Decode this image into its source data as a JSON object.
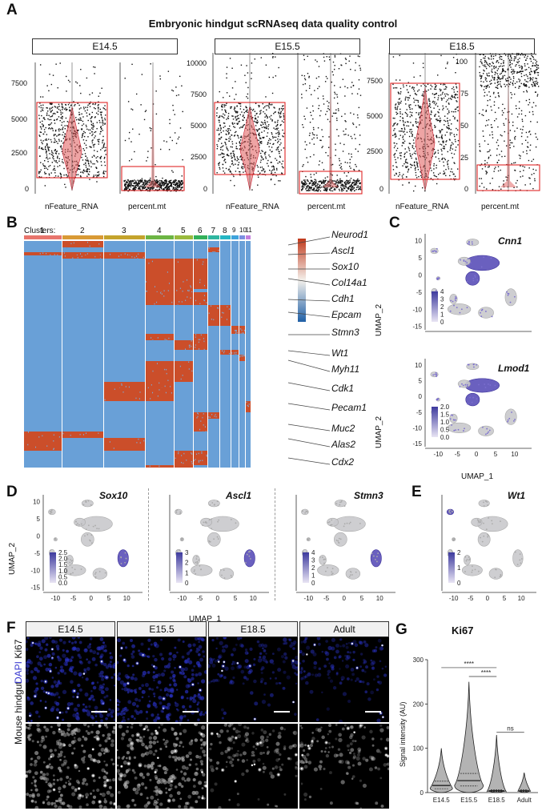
{
  "panels": {
    "A": "A",
    "B": "B",
    "C": "C",
    "D": "D",
    "E": "E",
    "F": "F",
    "G": "G"
  },
  "panelA": {
    "title": "Embryonic hindgut scRNAseq data quality control",
    "groups": [
      {
        "label": "E14.5",
        "feature_ticks": [
          "7500",
          "5000",
          "2500",
          "0"
        ],
        "mt_ticks": []
      },
      {
        "label": "E15.5",
        "feature_ticks": [
          "10000",
          "7500",
          "5000",
          "2500",
          "0"
        ],
        "mt_ticks": []
      },
      {
        "label": "E18.5",
        "feature_ticks": [
          "7500",
          "5000",
          "2500",
          "0"
        ],
        "mt_ticks": [
          "100",
          "75",
          "50",
          "25",
          "0"
        ]
      }
    ],
    "x_labels": {
      "feature": "nFeature_RNA",
      "mt": "percent.mt"
    }
  },
  "panelB": {
    "clusters_label": "Clusters:",
    "clusters": [
      "1",
      "2",
      "3",
      "4",
      "5",
      "6",
      "7",
      "8",
      "9",
      "10",
      "11"
    ],
    "cluster_colors": [
      "#e8756c",
      "#d99a35",
      "#c4a32c",
      "#6cb544",
      "#9aba3d",
      "#33b15a",
      "#2fb6a0",
      "#25b6c4",
      "#3fa3dc",
      "#7b8fe0",
      "#c37fde"
    ],
    "genes": [
      "Neurod1",
      "Ascl1",
      "Sox10",
      "Col14a1",
      "Cdh1",
      "Epcam",
      "Stmn3",
      "Wt1",
      "Myh11",
      "Cdk1",
      "Pecam1",
      "Muc2",
      "Alas2",
      "Cdx2"
    ]
  },
  "panelC": {
    "genes": [
      "Cnn1",
      "Lmod1"
    ],
    "legend1": [
      "4",
      "3",
      "2",
      "1",
      "0"
    ],
    "legend2": [
      "2.0",
      "1.5",
      "1.0",
      "0.5",
      "0.0"
    ],
    "y_ticks": [
      "10",
      "5",
      "0",
      "-5",
      "-10",
      "-15"
    ],
    "x_ticks": [
      "-10",
      "-5",
      "0",
      "5",
      "10"
    ],
    "xlabel": "UMAP_1",
    "ylabel": "UMAP_2"
  },
  "panelD": {
    "genes": [
      "Sox10",
      "Ascl1",
      "Stmn3"
    ],
    "legends": [
      [
        "2.5",
        "2.0",
        "1.5",
        "1.0",
        "0.5",
        "0.0"
      ],
      [
        "3",
        "2",
        "1",
        "0"
      ],
      [
        "4",
        "3",
        "2",
        "1",
        "0"
      ]
    ],
    "y_ticks": [
      "10",
      "5",
      "0",
      "-5",
      "-10",
      "-15"
    ],
    "x_ticks": [
      "-10",
      "-5",
      "0",
      "5",
      "10"
    ],
    "xlabel": "UMAP_1",
    "ylabel": "UMAP_2"
  },
  "panelE": {
    "gene": "Wt1",
    "legend": [
      "2",
      "1",
      "0"
    ],
    "x_ticks": [
      "-10",
      "-5",
      "0",
      "5",
      "10"
    ]
  },
  "panelF": {
    "stages": [
      "E14.5",
      "E15.5",
      "E18.5",
      "Adult"
    ],
    "row_label_ki67": "Ki67",
    "row_label_dapi": "DAPI",
    "side_label": "Mouse hindgut"
  },
  "panelG": {
    "chart_data": {
      "type": "violin",
      "title": "Ki67",
      "ylabel": "Signal intensity (AU)",
      "categories": [
        "E14.5",
        "E15.5",
        "E18.5",
        "Adult"
      ],
      "ylim": [
        0,
        300
      ],
      "y_ticks": [
        "300",
        "200",
        "100",
        "0"
      ],
      "maxima": [
        100,
        250,
        130,
        45
      ],
      "medians": [
        16,
        27,
        4,
        4
      ],
      "significance": [
        {
          "text": "****",
          "from": "E15.5",
          "to": "E18.5"
        },
        {
          "text": "****",
          "from": "E14.5",
          "to": "E18.5"
        },
        {
          "text": "ns",
          "from": "E18.5",
          "to": "Adult"
        }
      ]
    }
  }
}
